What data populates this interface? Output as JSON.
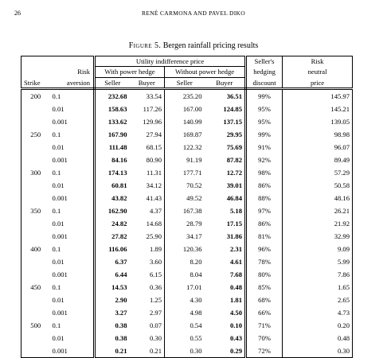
{
  "page": {
    "number": "26",
    "running_head": "RENÉ CARMONA AND PAVEL DIKO",
    "caption_label": "Figure 5.",
    "caption_text": "Bergen rainfall pricing results"
  },
  "table": {
    "header": {
      "utility_group": "Utility indifference price",
      "power_hedge": "With power hedge",
      "no_power_hedge": "Without power hedge",
      "sellers_top": "Seller's",
      "sellers_mid": "hedging",
      "sellers_bot": "discount",
      "risk_top": "Risk",
      "risk_mid": "neutral",
      "risk_bot": "price",
      "aversion_top": "Risk",
      "aversion_bot": "aversion",
      "strike": "Strike",
      "seller": "Seller",
      "buyer": "Buyer",
      "seller2": "Seller",
      "buyer2": "Buyer"
    },
    "rows": [
      {
        "strike": "200",
        "risk": "0.1",
        "ws": "232.68",
        "wb": "33.54",
        "ns": "235.20",
        "nb": "36.51",
        "disc": "99%",
        "rn": "145.97"
      },
      {
        "strike": "",
        "risk": "0.01",
        "ws": "158.63",
        "wb": "117.26",
        "ns": "167.00",
        "nb": "124.85",
        "disc": "95%",
        "rn": "145.21"
      },
      {
        "strike": "",
        "risk": "0.001",
        "ws": "133.62",
        "wb": "129.96",
        "ns": "140.99",
        "nb": "137.15",
        "disc": "95%",
        "rn": "139.05"
      },
      {
        "strike": "250",
        "risk": "0.1",
        "ws": "167.90",
        "wb": "27.94",
        "ns": "169.87",
        "nb": "29.95",
        "disc": "99%",
        "rn": "98.98"
      },
      {
        "strike": "",
        "risk": "0.01",
        "ws": "111.48",
        "wb": "68.15",
        "ns": "122.32",
        "nb": "75.69",
        "disc": "91%",
        "rn": "96.07"
      },
      {
        "strike": "",
        "risk": "0.001",
        "ws": "84.16",
        "wb": "80.90",
        "ns": "91.19",
        "nb": "87.82",
        "disc": "92%",
        "rn": "89.49"
      },
      {
        "strike": "300",
        "risk": "0.1",
        "ws": "174.13",
        "wb": "11.31",
        "ns": "177.71",
        "nb": "12.72",
        "disc": "98%",
        "rn": "57.29"
      },
      {
        "strike": "",
        "risk": "0.01",
        "ws": "60.81",
        "wb": "34.12",
        "ns": "70.52",
        "nb": "39.01",
        "disc": "86%",
        "rn": "50.58"
      },
      {
        "strike": "",
        "risk": "0.001",
        "ws": "43.82",
        "wb": "41.43",
        "ns": "49.52",
        "nb": "46.84",
        "disc": "88%",
        "rn": "48.16"
      },
      {
        "strike": "350",
        "risk": "0.1",
        "ws": "162.90",
        "wb": "4.37",
        "ns": "167.38",
        "nb": "5.18",
        "disc": "97%",
        "rn": "26.21"
      },
      {
        "strike": "",
        "risk": "0.01",
        "ws": "24.82",
        "wb": "14.68",
        "ns": "28.79",
        "nb": "17.15",
        "disc": "86%",
        "rn": "21.92"
      },
      {
        "strike": "",
        "risk": "0.001",
        "ws": "27.82",
        "wb": "25.90",
        "ns": "34.17",
        "nb": "31.86",
        "disc": "81%",
        "rn": "32.99"
      },
      {
        "strike": "400",
        "risk": "0.1",
        "ws": "116.06",
        "wb": "1.89",
        "ns": "120.36",
        "nb": "2.31",
        "disc": "96%",
        "rn": "9.09"
      },
      {
        "strike": "",
        "risk": "0.01",
        "ws": "6.37",
        "wb": "3.60",
        "ns": "8.20",
        "nb": "4.61",
        "disc": "78%",
        "rn": "5.99"
      },
      {
        "strike": "",
        "risk": "0.001",
        "ws": "6.44",
        "wb": "6.15",
        "ns": "8.04",
        "nb": "7.68",
        "disc": "80%",
        "rn": "7.86"
      },
      {
        "strike": "450",
        "risk": "0.1",
        "ws": "14.53",
        "wb": "0.36",
        "ns": "17.01",
        "nb": "0.48",
        "disc": "85%",
        "rn": "1.65"
      },
      {
        "strike": "",
        "risk": "0.01",
        "ws": "2.90",
        "wb": "1.25",
        "ns": "4.30",
        "nb": "1.81",
        "disc": "68%",
        "rn": "2.65"
      },
      {
        "strike": "",
        "risk": "0.001",
        "ws": "3.27",
        "wb": "2.97",
        "ns": "4.98",
        "nb": "4.50",
        "disc": "66%",
        "rn": "4.73"
      },
      {
        "strike": "500",
        "risk": "0.1",
        "ws": "0.38",
        "wb": "0.07",
        "ns": "0.54",
        "nb": "0.10",
        "disc": "71%",
        "rn": "0.20"
      },
      {
        "strike": "",
        "risk": "0.01",
        "ws": "0.38",
        "wb": "0.30",
        "ns": "0.55",
        "nb": "0.43",
        "disc": "70%",
        "rn": "0.48"
      },
      {
        "strike": "",
        "risk": "0.001",
        "ws": "0.21",
        "wb": "0.21",
        "ns": "0.30",
        "nb": "0.29",
        "disc": "72%",
        "rn": "0.30"
      }
    ]
  }
}
